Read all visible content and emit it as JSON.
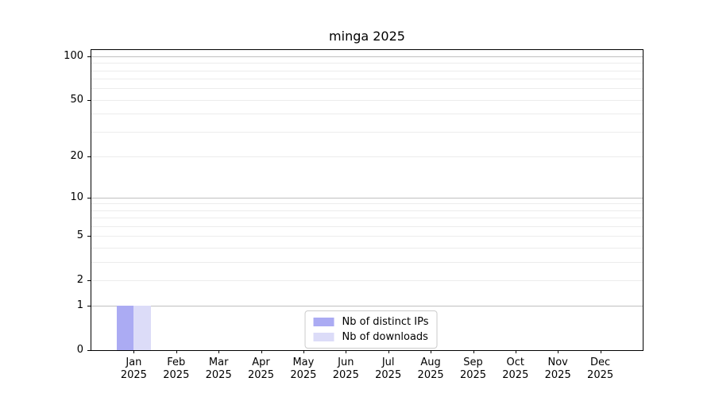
{
  "title": "minga 2025",
  "chart_data": {
    "type": "bar",
    "title": "minga 2025",
    "categories": [
      "Jan 2025",
      "Feb 2025",
      "Mar 2025",
      "Apr 2025",
      "May 2025",
      "Jun 2025",
      "Jul 2025",
      "Aug 2025",
      "Sep 2025",
      "Oct 2025",
      "Nov 2025",
      "Dec 2025"
    ],
    "series": [
      {
        "name": "Nb of distinct IPs",
        "color": "#ababf3",
        "values": [
          1,
          0,
          0,
          0,
          0,
          0,
          0,
          0,
          0,
          0,
          0,
          0
        ]
      },
      {
        "name": "Nb of downloads",
        "color": "#dcdcf8",
        "values": [
          1,
          0,
          0,
          0,
          0,
          0,
          0,
          0,
          0,
          0,
          0,
          0
        ]
      }
    ],
    "xlabel": "",
    "ylabel": "",
    "y_axis": {
      "scale": "log10(1+value)",
      "tick_values": [
        0,
        1,
        2,
        5,
        10,
        20,
        50,
        100
      ],
      "tick_labels": [
        "0",
        "1",
        "2",
        "5",
        "10",
        "20",
        "50",
        "100"
      ],
      "major_grid_values": [
        1,
        10,
        100
      ],
      "minor_grid_values": [
        2,
        3,
        4,
        5,
        6,
        7,
        8,
        9,
        20,
        30,
        40,
        50,
        60,
        70,
        80,
        90
      ],
      "ylim": [
        0,
        111
      ]
    },
    "grid": true,
    "legend_position": "lower center",
    "colors": {
      "major_grid": "#c0c0c0",
      "minor_grid": "#ececec",
      "axis": "#000000",
      "legend_border": "#cccccc",
      "background": "#ffffff"
    }
  }
}
